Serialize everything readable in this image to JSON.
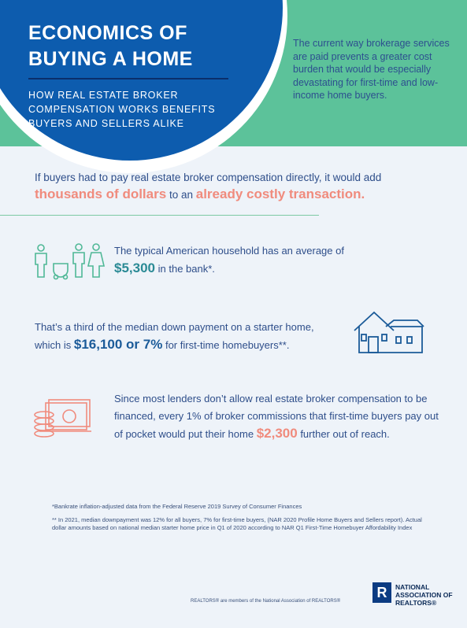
{
  "header": {
    "title": "ECONOMICS OF BUYING A HOME",
    "subtitle": "HOW REAL ESTATE BROKER COMPENSATION WORKS BENEFITS BUYERS AND SELLERS ALIKE",
    "intro": "The current way brokerage services are paid prevents a greater cost burden that would be especially devastating for first-time and low-income home buyers."
  },
  "lead": {
    "text": "If buyers had to pay real estate broker compensation directly, it would add",
    "highlight1": "thousands of dollars",
    "middle": "to an",
    "highlight2": "already costly transaction."
  },
  "facts": [
    {
      "text": "The typical American household has an average of",
      "value": "$5,300",
      "after": "in the bank*."
    },
    {
      "text": "That’s a third of the median down payment on a starter home, which is",
      "value": "$16,100 or 7%",
      "after": "for first-time homebuyers**."
    },
    {
      "text": "Since most lenders don’t allow real estate broker compensation to be financed, every 1% of broker commissions that first-time buyers pay out of pocket would put their home",
      "value": "$2,300",
      "after": "further out of reach."
    }
  ],
  "footnotes": [
    "*Bankrate inflation-adjusted data from the Federal Reserve 2019 Survey of Consumer Finances",
    "** In 2021, median downpayment was 12% for all buyers, 7% for first-time buyers, (NAR 2020 Profile Home Buyers and Sellers report). Actual dollar amounts based on national median starter home price in Q1 of 2020 according to NAR Q1 First-Time Homebuyer Affordability Index"
  ],
  "footer": {
    "disclaimer": "REALTORS® are members of the National Association of REALTORS®",
    "logo_mark": "R",
    "logo_text": "NATIONAL ASSOCIATION OF REALTORS®"
  }
}
